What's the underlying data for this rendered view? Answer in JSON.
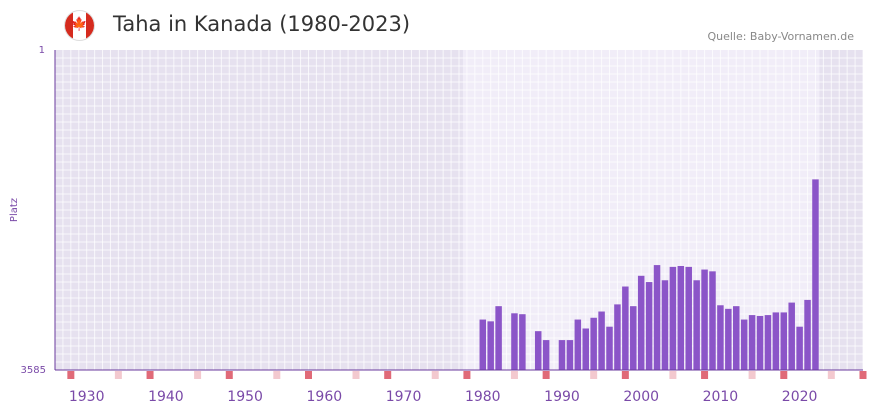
{
  "header": {
    "flag": "canada-flag-icon",
    "flag_glyph": "🍁",
    "title": "Taha in Kanada (1980-2023)",
    "source": "Quelle: Baby-Vornamen.de"
  },
  "colors": {
    "bar": "#8b55c8",
    "plot_bg_outer": "#e6e1ef",
    "plot_bg_inner": "#f1edf8",
    "axis": "#6a3a9e",
    "axis_text": "#7a4aa8",
    "marker_major": "#e06a78",
    "marker_minor": "#f3c9cf"
  },
  "chart_data": {
    "type": "bar",
    "title": "Taha in Kanada (1980-2023)",
    "xlabel": "",
    "ylabel": "Platz",
    "y_inverted": true,
    "ylim": [
      1,
      3585
    ],
    "y_ticks": [
      1,
      3585
    ],
    "xlim": [
      1926,
      2028
    ],
    "x_ticks": [
      1930,
      1940,
      1950,
      1960,
      1970,
      1980,
      1990,
      2000,
      2010,
      2020
    ],
    "highlight_range": [
      1977.5,
      2022.5
    ],
    "series": [
      {
        "name": "Platz",
        "x": [
          1980,
          1981,
          1982,
          1984,
          1985,
          1987,
          1988,
          1990,
          1991,
          1992,
          1993,
          1994,
          1995,
          1996,
          1997,
          1998,
          1999,
          2000,
          2001,
          2002,
          2003,
          2004,
          2005,
          2006,
          2007,
          2008,
          2009,
          2010,
          2011,
          2012,
          2013,
          2014,
          2015,
          2016,
          2017,
          2018,
          2019,
          2020,
          2021,
          2022
        ],
        "values": [
          3020,
          3040,
          2870,
          2950,
          2960,
          3150,
          3250,
          3250,
          3250,
          3020,
          3120,
          3000,
          2930,
          3100,
          2850,
          2650,
          2870,
          2530,
          2600,
          2410,
          2580,
          2430,
          2420,
          2430,
          2580,
          2460,
          2480,
          2860,
          2900,
          2870,
          3020,
          2970,
          2980,
          2970,
          2940,
          2940,
          2830,
          3100,
          2800,
          1450
        ]
      }
    ]
  }
}
